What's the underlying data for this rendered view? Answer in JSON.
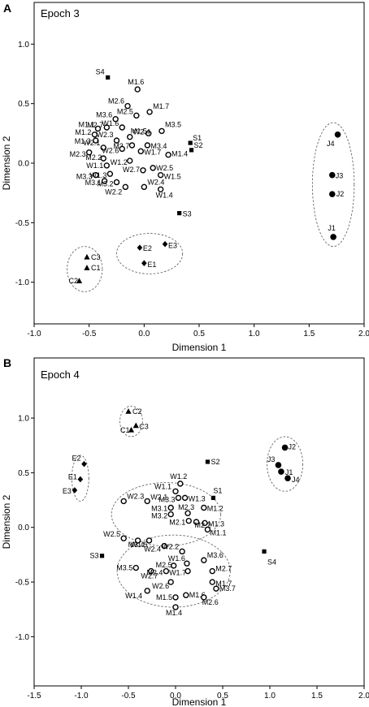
{
  "chart_data": [
    {
      "type": "scatter",
      "panel": "A",
      "title": "Epoch 3",
      "xlabel": "Dimension 1",
      "ylabel": "Dimension 2",
      "xlim": [
        -1.0,
        2.0
      ],
      "ylim": [
        -1.35,
        1.35
      ],
      "xticks": [
        "-1.0",
        "-0.5",
        "0.0",
        "0.5",
        "1.0",
        "1.5",
        "2.0"
      ],
      "yticks": [
        "-1.0",
        "-0.5",
        "0.0",
        "0.5",
        "1.0"
      ],
      "xtick_values": [
        -1.0,
        -0.5,
        0.0,
        0.5,
        1.0,
        1.5,
        2.0
      ],
      "ytick_values": [
        -1.0,
        -0.5,
        0.0,
        0.5,
        1.0
      ],
      "grid": false,
      "series": [
        {
          "marker": "open-circle",
          "points": [
            {
              "label": "M1.6",
              "x": -0.06,
              "y": 0.62
            },
            {
              "label": "M2.6",
              "x": -0.15,
              "y": 0.48
            },
            {
              "label": "M2.5",
              "x": -0.07,
              "y": 0.4
            },
            {
              "label": "M1.7",
              "x": 0.05,
              "y": 0.43
            },
            {
              "label": "M3.6",
              "x": -0.26,
              "y": 0.37
            },
            {
              "label": "M2.7",
              "x": -0.34,
              "y": 0.3
            },
            {
              "label": "W1.6",
              "x": -0.2,
              "y": 0.3
            },
            {
              "label": "M3.5",
              "x": 0.16,
              "y": 0.27
            },
            {
              "label": "M1.5",
              "x": 0.04,
              "y": 0.25
            },
            {
              "label": "W2.4",
              "x": -0.13,
              "y": 0.22
            },
            {
              "label": "M1.1",
              "x": -0.42,
              "y": 0.29
            },
            {
              "label": "M1.2",
              "x": -0.45,
              "y": 0.24
            },
            {
              "label": "M1.3",
              "x": -0.44,
              "y": 0.19
            },
            {
              "label": "W2.3",
              "x": -0.25,
              "y": 0.19
            },
            {
              "label": "M3.7",
              "x": -0.11,
              "y": 0.15
            },
            {
              "label": "M3.4",
              "x": 0.03,
              "y": 0.15
            },
            {
              "label": "W2.1",
              "x": -0.37,
              "y": 0.13
            },
            {
              "label": "W2.6",
              "x": -0.2,
              "y": 0.12
            },
            {
              "label": "W1.7",
              "x": -0.03,
              "y": 0.1
            },
            {
              "label": "M1.4",
              "x": 0.22,
              "y": 0.07
            },
            {
              "label": "M2.3",
              "x": -0.5,
              "y": 0.09
            },
            {
              "label": "M2.2",
              "x": -0.37,
              "y": 0.04
            },
            {
              "label": "W1.2",
              "x": -0.13,
              "y": 0.02
            },
            {
              "label": "W1.1",
              "x": -0.34,
              "y": -0.02
            },
            {
              "label": "M3.3",
              "x": -0.44,
              "y": -0.1
            },
            {
              "label": "W1.3",
              "x": -0.31,
              "y": -0.09
            },
            {
              "label": "W2.7",
              "x": -0.01,
              "y": -0.06
            },
            {
              "label": "W2.5",
              "x": 0.08,
              "y": -0.04
            },
            {
              "label": "M3.1",
              "x": -0.36,
              "y": -0.15
            },
            {
              "label": "M3.2",
              "x": -0.25,
              "y": -0.16
            },
            {
              "label": "W1.5",
              "x": 0.15,
              "y": -0.1
            },
            {
              "label": "W2.2",
              "x": -0.17,
              "y": -0.2
            },
            {
              "label": "W2.4",
              "x": 0.0,
              "y": -0.2
            },
            {
              "label": "W1.4",
              "x": 0.15,
              "y": -0.22
            }
          ]
        },
        {
          "marker": "square",
          "points": [
            {
              "label": "S4",
              "x": -0.33,
              "y": 0.72
            },
            {
              "label": "S1",
              "x": 0.42,
              "y": 0.17
            },
            {
              "label": "S2",
              "x": 0.43,
              "y": 0.11
            },
            {
              "label": "S3",
              "x": 0.32,
              "y": -0.42
            }
          ]
        },
        {
          "marker": "filled-circle",
          "points": [
            {
              "label": "J4",
              "x": 1.76,
              "y": 0.24
            },
            {
              "label": "J3",
              "x": 1.71,
              "y": -0.1
            },
            {
              "label": "J2",
              "x": 1.71,
              "y": -0.26
            },
            {
              "label": "J1",
              "x": 1.72,
              "y": -0.62
            }
          ]
        },
        {
          "marker": "diamond",
          "points": [
            {
              "label": "E2",
              "x": -0.04,
              "y": -0.71
            },
            {
              "label": "E3",
              "x": 0.19,
              "y": -0.68
            },
            {
              "label": "E1",
              "x": 0.0,
              "y": -0.84
            }
          ]
        },
        {
          "marker": "triangle",
          "points": [
            {
              "label": "C3",
              "x": -0.52,
              "y": -0.79
            },
            {
              "label": "C1",
              "x": -0.52,
              "y": -0.88
            },
            {
              "label": "C2",
              "x": -0.59,
              "y": -0.99
            }
          ]
        }
      ],
      "ellipses": [
        {
          "cx": 1.72,
          "cy": -0.18,
          "rx": 0.19,
          "ry": 0.52
        },
        {
          "cx": 0.05,
          "cy": -0.76,
          "rx": 0.3,
          "ry": 0.17
        },
        {
          "cx": -0.54,
          "cy": -0.89,
          "rx": 0.16,
          "ry": 0.19
        }
      ]
    },
    {
      "type": "scatter",
      "panel": "B",
      "title": "Epoch 4",
      "xlabel": "Dimension 1",
      "ylabel": "Dimension 2",
      "xlim": [
        -1.5,
        2.0
      ],
      "ylim": [
        -1.45,
        1.55
      ],
      "xticks": [
        "-1.5",
        "-1.0",
        "-0.5",
        "0.0",
        "0.5",
        "1.0",
        "1.5",
        "2.0"
      ],
      "yticks": [
        "-1.0",
        "-0.5",
        "0.0",
        "0.5",
        "1.0"
      ],
      "xtick_values": [
        -1.5,
        -1.0,
        -0.5,
        0.0,
        0.5,
        1.0,
        1.5,
        2.0
      ],
      "ytick_values": [
        -1.0,
        -0.5,
        0.0,
        0.5,
        1.0
      ],
      "grid": false,
      "series": [
        {
          "marker": "open-circle",
          "points": [
            {
              "label": "W1.2",
              "x": 0.05,
              "y": 0.4
            },
            {
              "label": "W1.1",
              "x": 0.0,
              "y": 0.33
            },
            {
              "label": "M3.3",
              "x": 0.03,
              "y": 0.27
            },
            {
              "label": "W1.3",
              "x": 0.1,
              "y": 0.27
            },
            {
              "label": "M1.2",
              "x": 0.3,
              "y": 0.18
            },
            {
              "label": "W2.3",
              "x": -0.55,
              "y": 0.24
            },
            {
              "label": "W2.1",
              "x": -0.3,
              "y": 0.24
            },
            {
              "label": "M3.1",
              "x": -0.05,
              "y": 0.18
            },
            {
              "label": "M3.2",
              "x": -0.05,
              "y": 0.12
            },
            {
              "label": "M2.3",
              "x": 0.13,
              "y": 0.13
            },
            {
              "label": "M2.1",
              "x": 0.14,
              "y": 0.06
            },
            {
              "label": "M1.3",
              "x": 0.31,
              "y": 0.04
            },
            {
              "label": "M1.1",
              "x": 0.34,
              "y": -0.02
            },
            {
              "label": "M2.2",
              "x": 0.22,
              "y": 0.05
            },
            {
              "label": "W2.5",
              "x": -0.55,
              "y": -0.1
            },
            {
              "label": "M3.4",
              "x": -0.4,
              "y": -0.12
            },
            {
              "label": "W1.5",
              "x": -0.28,
              "y": -0.12
            },
            {
              "label": "W2.4",
              "x": -0.12,
              "y": -0.17
            },
            {
              "label": "W2.2",
              "x": 0.07,
              "y": -0.22
            },
            {
              "label": "M3.6",
              "x": 0.3,
              "y": -0.3
            },
            {
              "label": "W1.6",
              "x": 0.12,
              "y": -0.33
            },
            {
              "label": "M2.5",
              "x": -0.02,
              "y": -0.35
            },
            {
              "label": "M3.5",
              "x": -0.42,
              "y": -0.37
            },
            {
              "label": "W2.7",
              "x": -0.26,
              "y": -0.4
            },
            {
              "label": "W1.7",
              "x": 0.13,
              "y": -0.4
            },
            {
              "label": "M2.7",
              "x": 0.39,
              "y": -0.4
            },
            {
              "label": "M2.4",
              "x": -0.1,
              "y": -0.4
            },
            {
              "label": "W2.6",
              "x": -0.05,
              "y": -0.5
            },
            {
              "label": "M1.7",
              "x": 0.39,
              "y": -0.5
            },
            {
              "label": "W1.4",
              "x": -0.3,
              "y": -0.58
            },
            {
              "label": "M3.7",
              "x": 0.43,
              "y": -0.56
            },
            {
              "label": "M1.6",
              "x": 0.11,
              "y": -0.62
            },
            {
              "label": "M1.5",
              "x": 0.0,
              "y": -0.64
            },
            {
              "label": "M2.6",
              "x": 0.3,
              "y": -0.64
            },
            {
              "label": "M1.4",
              "x": 0.0,
              "y": -0.73
            }
          ]
        },
        {
          "marker": "square",
          "points": [
            {
              "label": "S2",
              "x": 0.34,
              "y": 0.6
            },
            {
              "label": "S1",
              "x": 0.4,
              "y": 0.27
            },
            {
              "label": "S3",
              "x": -0.78,
              "y": -0.26
            },
            {
              "label": "S4",
              "x": 0.94,
              "y": -0.22
            }
          ]
        },
        {
          "marker": "filled-circle",
          "points": [
            {
              "label": "J2",
              "x": 1.16,
              "y": 0.73
            },
            {
              "label": "J3",
              "x": 1.09,
              "y": 0.57
            },
            {
              "label": "J1",
              "x": 1.12,
              "y": 0.51
            },
            {
              "label": "J4",
              "x": 1.19,
              "y": 0.45
            }
          ]
        },
        {
          "marker": "diamond",
          "points": [
            {
              "label": "E2",
              "x": -0.97,
              "y": 0.58
            },
            {
              "label": "E1",
              "x": -1.01,
              "y": 0.44
            },
            {
              "label": "E3",
              "x": -1.07,
              "y": 0.34
            }
          ]
        },
        {
          "marker": "triangle",
          "points": [
            {
              "label": "C2",
              "x": -0.5,
              "y": 1.06
            },
            {
              "label": "C1",
              "x": -0.47,
              "y": 0.89
            },
            {
              "label": "C3",
              "x": -0.42,
              "y": 0.93
            }
          ]
        }
      ],
      "ellipses": [
        {
          "cx": 1.16,
          "cy": 0.58,
          "rx": 0.19,
          "ry": 0.25
        },
        {
          "cx": -1.01,
          "cy": 0.45,
          "rx": 0.09,
          "ry": 0.21
        },
        {
          "cx": -0.47,
          "cy": 0.97,
          "rx": 0.12,
          "ry": 0.14
        },
        {
          "cx": -0.1,
          "cy": 0.12,
          "rx": 0.58,
          "ry": 0.29
        },
        {
          "cx": -0.02,
          "cy": -0.4,
          "rx": 0.6,
          "ry": 0.33
        }
      ]
    }
  ],
  "panels": [
    {
      "letter": "A",
      "title": "Epoch 3",
      "xlabel": "Dimension 1",
      "ylabel": "Dimension 2"
    },
    {
      "letter": "B",
      "title": "Epoch 4",
      "xlabel": "Dimension 1",
      "ylabel": "Dimension 2"
    }
  ]
}
